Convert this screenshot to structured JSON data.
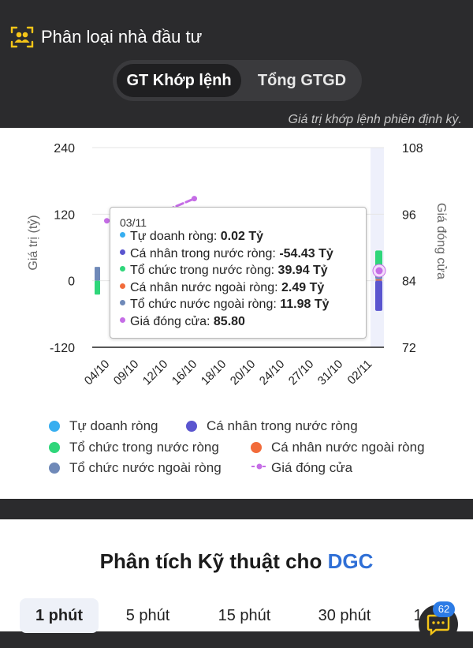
{
  "header": {
    "title": "Phân loại nhà đầu tư",
    "tabs": [
      {
        "label": "GT Khớp lệnh",
        "active": true
      },
      {
        "label": "Tổng GTGD",
        "active": false
      }
    ],
    "note": "Giá trị khớp lệnh phiên định kỳ."
  },
  "chart_data": {
    "type": "bar",
    "x_labels": [
      "04/10",
      "09/10",
      "12/10",
      "16/10",
      "18/10",
      "20/10",
      "24/10",
      "27/10",
      "31/10",
      "02/11"
    ],
    "ylabel_left": "Giá trị (tỷ)",
    "ylabel_right": "Giá đóng cửa",
    "ylim_left": [
      -120,
      240
    ],
    "ylim_right": [
      72,
      108
    ],
    "yticks_left": [
      "240",
      "120",
      "0",
      "-120"
    ],
    "yticks_right": [
      "108",
      "96",
      "84",
      "72"
    ],
    "series_colors": {
      "tu_doanh": "#37aef0",
      "ca_nhan_trong_nuoc": "#5a55cf",
      "to_chuc_trong_nuoc": "#2fd67a",
      "ca_nhan_nuoc_ngoai": "#f26b3a",
      "to_chuc_nuoc_ngoai": "#6f89b8",
      "gia_dong_cua": "#c56de6"
    },
    "visible_points": {
      "first_session_bars": {
        "ca_nhan_trong_nuoc": 25,
        "to_chuc_trong_nuoc": -25
      },
      "last_session_bars": {
        "tu_doanh": 0.02,
        "ca_nhan_trong_nuoc": -54.43,
        "to_chuc_trong_nuoc": 39.94,
        "ca_nhan_nuoc_ngoai": 2.49,
        "to_chuc_nuoc_ngoai": 11.98
      },
      "close_price_partial": [
        {
          "x": "04/10",
          "y": 94.8
        },
        {
          "x": "09/10",
          "y": 95.2
        },
        {
          "x": "12/10",
          "y": 96.6
        },
        {
          "x": "16/10",
          "y": 98.8
        },
        {
          "x": "02/11",
          "y": 85.8
        }
      ]
    },
    "legend": [
      {
        "label": "Tự doanh ròng",
        "color": "#37aef0",
        "shape": "dot"
      },
      {
        "label": "Cá nhân trong nước ròng",
        "color": "#5a55cf",
        "shape": "dot"
      },
      {
        "label": "Tổ chức trong nước ròng",
        "color": "#2fd67a",
        "shape": "dot"
      },
      {
        "label": "Cá nhân nước ngoài ròng",
        "color": "#f26b3a",
        "shape": "dot"
      },
      {
        "label": "Tổ chức nước ngoài ròng",
        "color": "#6f89b8",
        "shape": "dot"
      },
      {
        "label": "Giá đóng cửa",
        "color": "#c56de6",
        "shape": "line"
      }
    ],
    "tooltip": {
      "date": "03/11",
      "rows": [
        {
          "label": "Tự doanh ròng:",
          "value": "0.02 Tỷ",
          "color": "#37aef0"
        },
        {
          "label": "Cá nhân trong nước ròng:",
          "value": "-54.43 Tỷ",
          "color": "#5a55cf"
        },
        {
          "label": "Tổ chức trong nước ròng:",
          "value": "39.94 Tỷ",
          "color": "#2fd67a"
        },
        {
          "label": "Cá nhân nước ngoài ròng:",
          "value": "2.49 Tỷ",
          "color": "#f26b3a"
        },
        {
          "label": "Tổ chức nước ngoài ròng:",
          "value": "11.98 Tỷ",
          "color": "#6f89b8"
        },
        {
          "label": "Giá đóng cửa:",
          "value": "85.80",
          "color": "#c56de6"
        }
      ]
    }
  },
  "analysis": {
    "title_prefix": "Phân tích Kỹ thuật cho",
    "ticker": "DGC",
    "timeframes": [
      "1 phút",
      "5 phút",
      "15 phút",
      "30 phút",
      "1"
    ]
  },
  "chat": {
    "badge": "62"
  }
}
